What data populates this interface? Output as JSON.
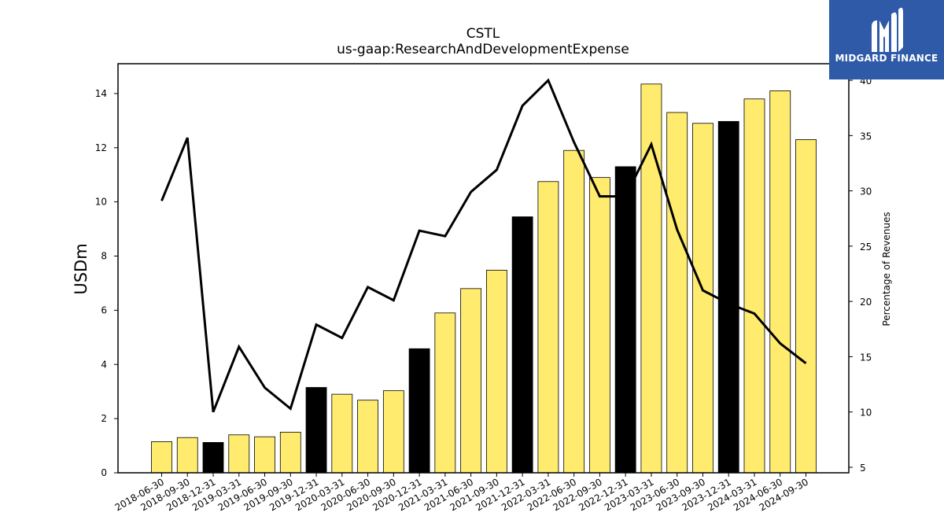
{
  "chart_data": {
    "type": "bar",
    "title": "CSTL",
    "subtitle": "us-gaap:ResearchAndDevelopmentExpense",
    "ylabel": "USDm",
    "y2label": "Percentage of Revenues",
    "ylim": [
      0,
      15.1
    ],
    "y2lim": [
      4.5,
      41.5
    ],
    "yticks": [
      0,
      2,
      4,
      6,
      8,
      10,
      12,
      14
    ],
    "y2ticks": [
      5,
      10,
      15,
      20,
      25,
      30,
      35,
      40
    ],
    "categories": [
      "2018-06-30",
      "2018-09-30",
      "2018-12-31",
      "2019-03-31",
      "2019-06-30",
      "2019-09-30",
      "2019-12-31",
      "2020-03-31",
      "2020-06-30",
      "2020-09-30",
      "2020-12-31",
      "2021-03-31",
      "2021-06-30",
      "2021-09-30",
      "2021-12-31",
      "2022-03-31",
      "2022-06-30",
      "2022-09-30",
      "2022-12-31",
      "2023-03-31",
      "2023-06-30",
      "2023-09-30",
      "2023-12-31",
      "2024-03-31",
      "2024-06-30",
      "2024-09-30"
    ],
    "series": [
      {
        "type": "bar",
        "axis": "left",
        "values": [
          1.15,
          1.3,
          1.12,
          1.4,
          1.33,
          1.5,
          3.15,
          2.9,
          2.68,
          3.03,
          4.58,
          5.9,
          6.8,
          7.48,
          9.45,
          10.75,
          11.9,
          10.9,
          11.3,
          14.35,
          13.3,
          12.9,
          12.97,
          13.8,
          14.1,
          12.3
        ],
        "year_end": [
          false,
          false,
          true,
          false,
          false,
          false,
          true,
          false,
          false,
          false,
          true,
          false,
          false,
          false,
          true,
          false,
          false,
          false,
          true,
          false,
          false,
          false,
          true,
          false,
          false,
          false
        ]
      },
      {
        "type": "line",
        "axis": "right",
        "values": [
          29.1,
          34.8,
          10.0,
          15.9,
          12.2,
          10.3,
          17.9,
          16.7,
          21.3,
          20.1,
          26.4,
          25.9,
          29.9,
          31.9,
          37.7,
          40.0,
          34.4,
          29.5,
          29.5,
          34.2,
          26.5,
          21.0,
          19.8,
          18.9,
          16.2,
          14.4
        ]
      }
    ],
    "colors": {
      "bar": "#ffeb6e",
      "bar_year_end": "#000000",
      "line": "#000000"
    },
    "grid": false
  },
  "logo": {
    "text": "MIDGARD FINANCE"
  }
}
